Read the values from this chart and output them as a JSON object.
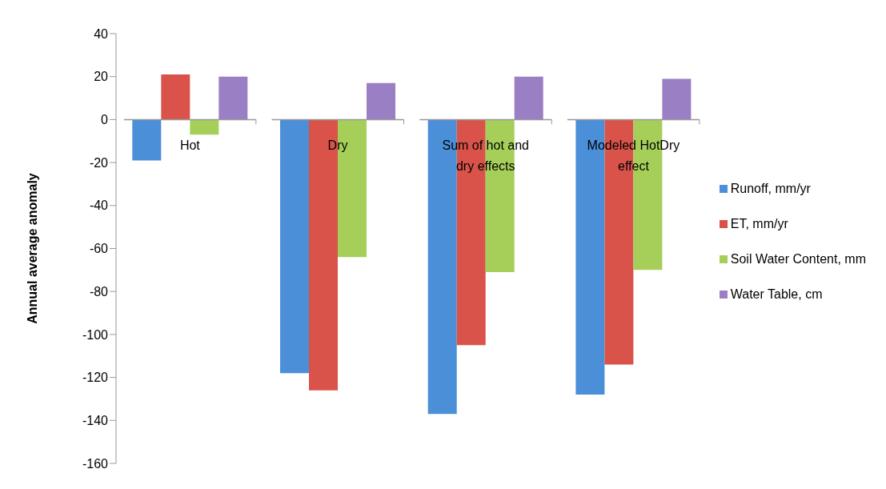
{
  "chart_data": {
    "type": "bar",
    "ylabel": "Annual average anomaly",
    "categories": [
      "Hot",
      "Dry",
      "Sum of hot and dry effects",
      "Modeled HotDry effect"
    ],
    "series": [
      {
        "name": "Runoff, mm/yr",
        "color": "#4a8fd8",
        "values": [
          -19,
          -118,
          -137,
          -128
        ]
      },
      {
        "name": "ET, mm/yr",
        "color": "#d9534a",
        "values": [
          21,
          -126,
          -105,
          -114
        ]
      },
      {
        "name": "Soil Water Content, mm",
        "color": "#a6cf5a",
        "values": [
          -7,
          -64,
          -71,
          -70
        ]
      },
      {
        "name": "Water Table, cm",
        "color": "#9b7fc4",
        "values": [
          20,
          17,
          20,
          19
        ]
      }
    ],
    "ylim": [
      -160,
      40
    ],
    "yticks": [
      -160,
      -140,
      -120,
      -100,
      -80,
      -60,
      -40,
      -20,
      0,
      20,
      40
    ],
    "grid": false,
    "legend": "right"
  }
}
